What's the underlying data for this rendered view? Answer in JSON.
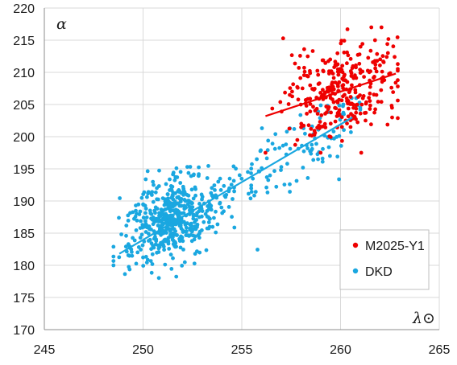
{
  "chart_data": {
    "type": "scatter",
    "title": "",
    "xlabel": "λ⊙",
    "ylabel": "α",
    "xlim": [
      245,
      265
    ],
    "ylim": [
      170,
      220
    ],
    "x_ticks": [
      245,
      250,
      255,
      260,
      265
    ],
    "y_ticks": [
      170,
      175,
      180,
      185,
      190,
      195,
      200,
      205,
      210,
      215,
      220
    ],
    "grid": "on",
    "legend_position": "lower-right",
    "series": [
      {
        "name": "M2025-Y1",
        "color": "#ee0000",
        "cloud": {
          "x_range": [
            256.2,
            262.9
          ],
          "y_range": [
            197.5,
            217.0
          ],
          "count": 320,
          "center": [
            260.0,
            207.0
          ]
        },
        "trend": {
          "x": [
            256.2,
            262.8
          ],
          "y": [
            203.2,
            209.8
          ]
        }
      },
      {
        "name": "DKD",
        "color": "#1aa7e0",
        "cloud": {
          "x_range": [
            248.5,
            261.0
          ],
          "y_range": [
            176.5,
            206.0
          ],
          "count": 640,
          "center": [
            251.5,
            187.5
          ]
        },
        "trend": {
          "x": [
            248.8,
            260.6
          ],
          "y": [
            181.8,
            203.0
          ]
        }
      }
    ]
  }
}
